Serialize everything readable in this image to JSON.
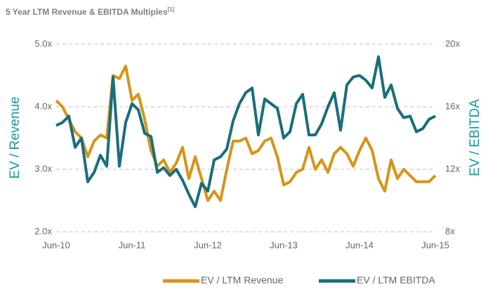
{
  "chart_data": {
    "type": "line",
    "title": "5 Year LTM Revenue & EBITDA Multiples",
    "title_note": "[1]",
    "y_label": "EV / Revenue",
    "y2_label": "EV / EBITDA",
    "categories": [
      "Jun-10",
      null,
      null,
      null,
      null,
      null,
      null,
      null,
      null,
      null,
      null,
      null,
      "Jun-11",
      null,
      null,
      null,
      null,
      null,
      null,
      null,
      null,
      null,
      null,
      null,
      "Jun-12",
      null,
      null,
      null,
      null,
      null,
      null,
      null,
      null,
      null,
      null,
      null,
      "Jun-13",
      null,
      null,
      null,
      null,
      null,
      null,
      null,
      null,
      null,
      null,
      null,
      "Jun-14",
      null,
      null,
      null,
      null,
      null,
      null,
      null,
      null,
      null,
      null,
      null,
      "Jun-15"
    ],
    "ylim": [
      2,
      5
    ],
    "yticks": [
      {
        "value": 2,
        "label": "2.0x"
      },
      {
        "value": 3,
        "label": "3.0x"
      },
      {
        "value": 4,
        "label": "4.0x"
      },
      {
        "value": 5,
        "label": "5.0x"
      }
    ],
    "y2lim": [
      8,
      20
    ],
    "y2ticks": [
      {
        "value": 8,
        "label": "8x"
      },
      {
        "value": 12,
        "label": "12x"
      },
      {
        "value": 16,
        "label": "16x"
      },
      {
        "value": 20,
        "label": "20x"
      }
    ],
    "grid": true,
    "legend": "bottom-right",
    "series": [
      {
        "name": "EV / LTM Revenue",
        "color": "#d4951b",
        "values": [
          4.1,
          4.0,
          3.8,
          3.6,
          3.5,
          3.2,
          3.45,
          3.55,
          3.5,
          4.5,
          4.45,
          4.65,
          4.1,
          4.2,
          3.8,
          3.3,
          3.05,
          3.15,
          2.95,
          3.1,
          3.35,
          2.85,
          3.2,
          2.85,
          2.5,
          2.65,
          2.5,
          3.0,
          3.45,
          3.45,
          3.5,
          3.25,
          3.3,
          3.45,
          3.5,
          3.2,
          2.75,
          2.8,
          2.95,
          3.0,
          3.35,
          3.0,
          3.15,
          2.95,
          3.25,
          3.35,
          3.25,
          3.05,
          3.3,
          3.5,
          3.3,
          2.85,
          2.65,
          3.15,
          2.85,
          3.0,
          2.9,
          2.8,
          2.8,
          2.8,
          2.9
        ]
      },
      {
        "name": "EV / LTM EBITDA",
        "color": "#1a6e7a",
        "axis": "y2",
        "values": [
          14.8,
          15.0,
          15.4,
          13.4,
          14.0,
          11.2,
          11.8,
          12.9,
          12.2,
          17.9,
          12.2,
          15.0,
          16.2,
          15.8,
          14.3,
          14.1,
          11.8,
          12.1,
          11.6,
          12.0,
          11.3,
          10.4,
          9.6,
          11.1,
          10.6,
          12.6,
          12.8,
          13.3,
          15.1,
          16.2,
          16.9,
          17.2,
          14.2,
          16.5,
          16.2,
          15.9,
          14.0,
          14.4,
          16.2,
          16.8,
          14.2,
          14.2,
          14.9,
          16.0,
          16.9,
          14.5,
          17.4,
          17.9,
          18.0,
          17.7,
          17.2,
          19.2,
          16.6,
          17.4,
          15.9,
          15.3,
          15.4,
          14.4,
          14.6,
          15.2,
          15.4
        ]
      }
    ]
  }
}
